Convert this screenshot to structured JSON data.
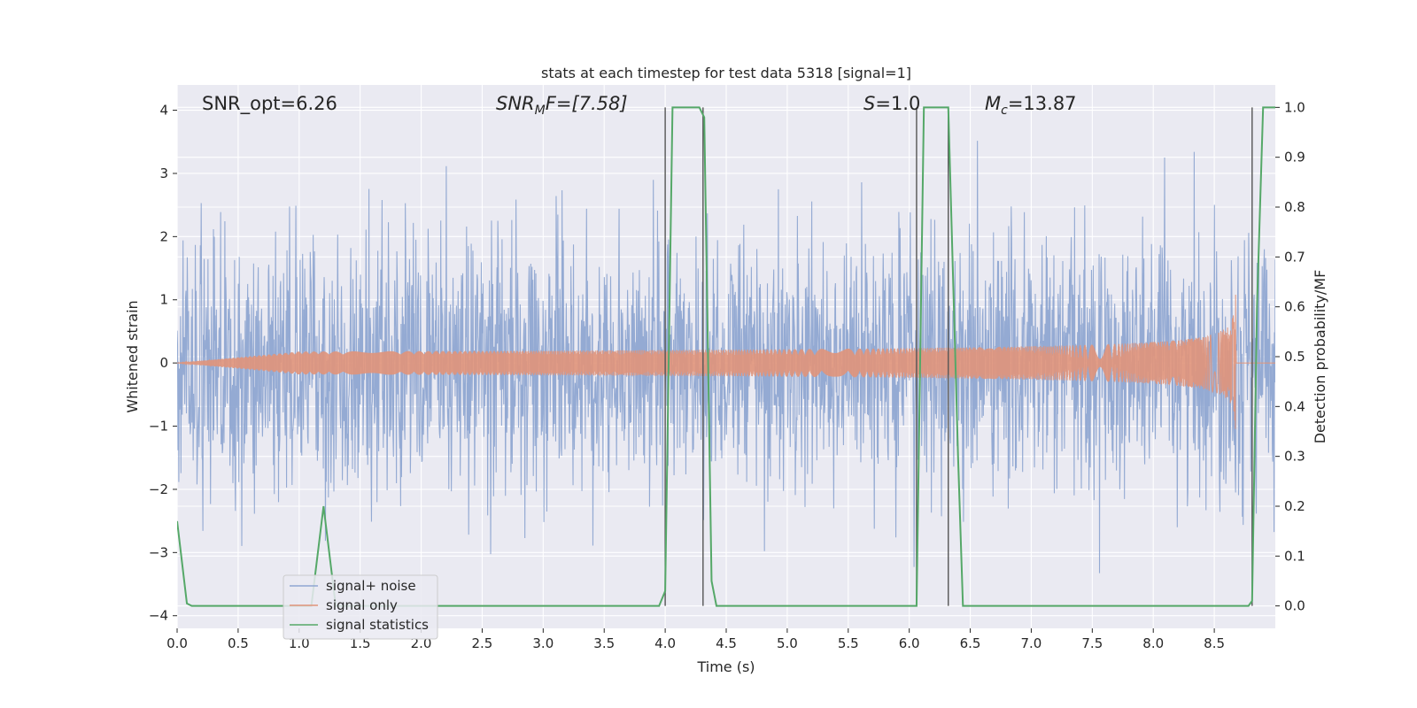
{
  "chart_data": {
    "type": "line",
    "title": "stats at each timestep for test data 5318 [signal=1]",
    "xlabel": "Time (s)",
    "ylabel_left": "Whitened strain",
    "ylabel_right": "Detection probability/MF",
    "xlim": [
      0.0,
      9.0
    ],
    "ylim_left": [
      -4.2,
      4.4
    ],
    "ylim_right": [
      -0.045,
      1.045
    ],
    "x_ticks": [
      "0.0",
      "0.5",
      "1.0",
      "1.5",
      "2.0",
      "2.5",
      "3.0",
      "3.5",
      "4.0",
      "4.5",
      "5.0",
      "5.5",
      "6.0",
      "6.5",
      "7.0",
      "7.5",
      "8.0",
      "8.5"
    ],
    "y_left_ticks": [
      "4",
      "3",
      "2",
      "1",
      "0",
      "−1",
      "−2",
      "−3",
      "−4"
    ],
    "y_right_ticks": [
      "1.0",
      "0.9",
      "0.8",
      "0.7",
      "0.6",
      "0.5",
      "0.4",
      "0.3",
      "0.2",
      "0.1",
      "0.0"
    ],
    "grid": true,
    "legend_position": "lower-left",
    "annotations": {
      "snr_opt": "SNR_opt=6.26",
      "snr_mf_base": "SNR",
      "snr_mf_sub": "M",
      "snr_mf_rest": "F=[7.58]",
      "s_italic": "S",
      "s_rest": "=1.0",
      "mc_base": "M",
      "mc_sub": "c",
      "mc_rest": "=13.87"
    },
    "vertical_markers": [
      4.0,
      4.31,
      6.06,
      6.32,
      8.81
    ],
    "series": [
      {
        "name": "signal+ noise",
        "color": "#8fa6d1",
        "description": "whitened strain, noise amplitude roughly within ±3"
      },
      {
        "name": "signal only",
        "color": "#e0937a",
        "chirp_peak_time": 8.68,
        "chirp_peak_amplitude": 1.2
      },
      {
        "name": "signal statistics",
        "color": "#55a868",
        "x": [
          0.0,
          0.08,
          0.12,
          1.1,
          1.2,
          1.3,
          3.95,
          4.0,
          4.06,
          4.28,
          4.32,
          4.38,
          4.42,
          6.04,
          6.06,
          6.12,
          6.14,
          6.32,
          6.4,
          6.44,
          8.78,
          8.81,
          8.85,
          8.9,
          9.0
        ],
        "y": [
          0.17,
          0.005,
          0.0,
          0.0,
          0.2,
          0.0,
          0.0,
          0.03,
          1.0,
          1.0,
          0.98,
          0.05,
          0.0,
          0.0,
          0.0,
          1.0,
          1.0,
          1.0,
          0.3,
          0.0,
          0.0,
          0.01,
          0.6,
          1.0,
          1.0
        ]
      }
    ]
  }
}
